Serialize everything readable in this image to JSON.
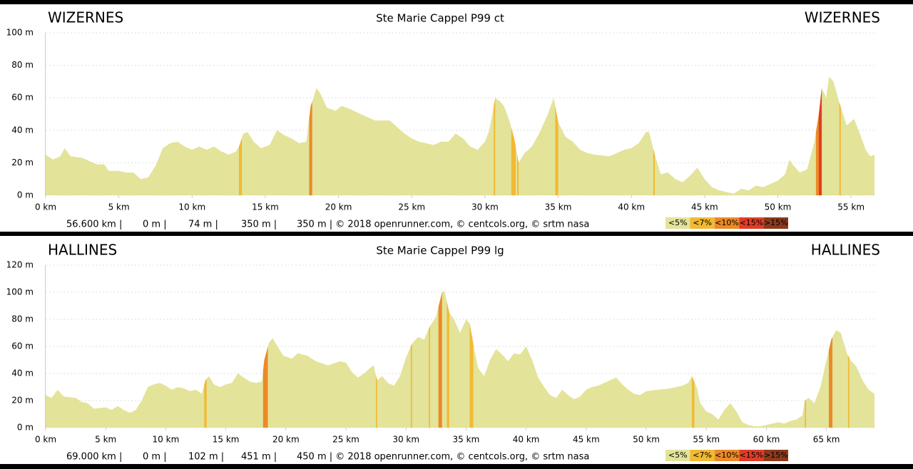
{
  "chart_data": [
    {
      "type": "area",
      "title": "Ste Marie Cappel P99 ct",
      "start_label": "WIZERNES",
      "end_label": "WIZERNES",
      "color": "#e3e39a",
      "x": [
        0,
        0.5,
        1,
        1.3,
        1.7,
        2.5,
        3,
        3.5,
        4,
        4.3,
        5,
        5.5,
        6,
        6.5,
        7,
        7.5,
        8,
        8.5,
        9,
        9.5,
        10,
        10.5,
        11,
        11.5,
        12,
        12.5,
        13,
        13.2,
        13.5,
        13.8,
        14.2,
        14.7,
        15.3,
        15.8,
        16.3,
        16.8,
        17.3,
        17.8,
        18.1,
        18.5,
        18.8,
        19.2,
        19.8,
        20.2,
        20.8,
        21.5,
        22,
        22.5,
        23.5,
        24,
        24.5,
        25,
        25.5,
        26.5,
        27,
        27.5,
        28,
        28.5,
        29,
        29.5,
        30,
        30.3,
        30.7,
        31,
        31.3,
        31.7,
        32,
        32.3,
        32.7,
        33.2,
        33.7,
        34.3,
        34.7,
        35,
        35.5,
        36,
        36.5,
        37,
        37.5,
        38.5,
        39,
        39.5,
        40,
        40.5,
        41,
        41.2,
        41.6,
        42,
        42.5,
        43,
        43.5,
        44,
        44.5,
        45,
        45.5,
        46,
        46.5,
        47,
        47.5,
        48,
        48.5,
        49,
        49.5,
        50,
        50.5,
        50.8,
        51,
        51.5,
        52,
        52.5,
        52.8,
        53,
        53.3,
        53.5,
        53.8,
        54.2,
        54.7,
        55.2,
        55.6,
        56,
        56.3,
        56.6
      ],
      "values": [
        25,
        22,
        24,
        29,
        24,
        23,
        21,
        19,
        19,
        15,
        15,
        14,
        14,
        10,
        11,
        18,
        29,
        32,
        33,
        30,
        28,
        30,
        28,
        30,
        27,
        25,
        27,
        30,
        38,
        39,
        33,
        29,
        31,
        40,
        37,
        35,
        32,
        33,
        55,
        66,
        62,
        54,
        52,
        55,
        53,
        50,
        48,
        46,
        46,
        42,
        38,
        35,
        33,
        31,
        33,
        33,
        38,
        35,
        30,
        28,
        33,
        40,
        60,
        58,
        55,
        45,
        35,
        20,
        26,
        30,
        38,
        50,
        60,
        45,
        36,
        33,
        28,
        26,
        25,
        24,
        26,
        28,
        29,
        32,
        39,
        39,
        25,
        13,
        14,
        10,
        8,
        12,
        17,
        10,
        5,
        3,
        2,
        1,
        4,
        3,
        6,
        5,
        7,
        9,
        13,
        22,
        19,
        14,
        16,
        33,
        50,
        66,
        60,
        73,
        70,
        57,
        43,
        47,
        38,
        28,
        24,
        25
      ],
      "xlim": [
        0,
        56.6
      ],
      "ylim": [
        0,
        100
      ],
      "xticks": [
        {
          "value": 0,
          "label": "0 km"
        },
        {
          "value": 5,
          "label": "5 km"
        },
        {
          "value": 10,
          "label": "10 km"
        },
        {
          "value": 15,
          "label": "15 km"
        },
        {
          "value": 20,
          "label": "20 km"
        },
        {
          "value": 25,
          "label": "25 km"
        },
        {
          "value": 30,
          "label": "30 km"
        },
        {
          "value": 35,
          "label": "35 km"
        },
        {
          "value": 40,
          "label": "40 km"
        },
        {
          "value": 45,
          "label": "45 km"
        },
        {
          "value": 50,
          "label": "50 km"
        },
        {
          "value": 55,
          "label": "55 km"
        }
      ],
      "yticks": [
        {
          "value": 0,
          "label": "0 m"
        },
        {
          "value": 20,
          "label": "20 m"
        },
        {
          "value": 40,
          "label": "40 m"
        },
        {
          "value": 60,
          "label": "60 m"
        },
        {
          "value": 80,
          "label": "80 m"
        },
        {
          "value": 100,
          "label": "100 m"
        }
      ],
      "steep": [
        {
          "from": 13.2,
          "to": 13.4,
          "grade": "<7%"
        },
        {
          "from": 18.0,
          "to": 18.2,
          "grade": "<10%"
        },
        {
          "from": 30.6,
          "to": 30.7,
          "grade": "<7%"
        },
        {
          "from": 31.8,
          "to": 32.1,
          "grade": "<7%"
        },
        {
          "from": 32.2,
          "to": 32.3,
          "grade": "<7%"
        },
        {
          "from": 34.8,
          "to": 35.0,
          "grade": "<7%"
        },
        {
          "from": 41.5,
          "to": 41.6,
          "grade": "<7%"
        },
        {
          "from": 52.6,
          "to": 52.8,
          "grade": "<10%"
        },
        {
          "from": 52.8,
          "to": 53.0,
          "grade": "<15%"
        },
        {
          "from": 54.2,
          "to": 54.3,
          "grade": "<7%"
        }
      ],
      "footer": [
        "56.600 km |",
        "0 m |",
        "74 m |",
        "350 m |",
        "350 m | © 2018 openrunner.com, © centcols.org, © srtm nasa"
      ],
      "legend": [
        {
          "label": "<5%",
          "color": "#e3e39a"
        },
        {
          "label": "<7%",
          "color": "#f2b933"
        },
        {
          "label": "<10%",
          "color": "#ec8a28"
        },
        {
          "label": "<15%",
          "color": "#e03c28"
        },
        {
          "label": ">15%",
          "color": "#8c3a1c"
        }
      ]
    },
    {
      "type": "area",
      "title": "Ste Marie Cappel P99 lg",
      "start_label": "HALLINES",
      "end_label": "HALLINES",
      "color": "#e3e39a",
      "x": [
        0,
        0.5,
        1,
        1.5,
        2.5,
        3,
        3.5,
        4,
        5,
        5.5,
        6,
        6.5,
        7,
        7.5,
        8,
        8.5,
        9,
        9.5,
        10,
        10.5,
        11,
        11.5,
        12,
        12.5,
        13,
        13.3,
        13.6,
        14,
        14.5,
        15,
        15.5,
        16,
        16.5,
        17,
        17.5,
        18,
        18.2,
        18.6,
        18.9,
        19.3,
        19.8,
        20.5,
        21,
        21.8,
        22.5,
        23.5,
        24.5,
        25,
        25.5,
        26,
        26.5,
        27,
        27.3,
        27.6,
        28,
        28.5,
        29,
        29.5,
        30,
        30.5,
        31,
        31.5,
        32,
        32.5,
        33,
        33.2,
        33.6,
        34,
        34.5,
        35,
        35.3,
        35.7,
        36,
        36.5,
        37,
        37.5,
        38,
        38.5,
        39,
        39.5,
        40,
        40.5,
        41,
        41.5,
        42,
        42.5,
        43,
        43.5,
        44,
        44.5,
        45,
        45.5,
        46,
        46.5,
        47,
        47.5,
        48,
        48.5,
        49,
        49.5,
        50,
        51,
        52,
        53,
        53.5,
        53.8,
        54.2,
        54.5,
        55,
        55.5,
        56,
        56.5,
        57,
        57.5,
        58,
        58.5,
        59,
        59.5,
        60,
        60.5,
        61,
        61.5,
        62,
        62.5,
        63,
        63.2,
        63.5,
        64,
        64.5,
        65,
        65.4,
        65.8,
        66.2,
        66.7,
        67,
        67.5,
        68,
        68.5,
        69
      ],
      "values": [
        24,
        22,
        28,
        23,
        22,
        19,
        18,
        14,
        15,
        13,
        16,
        13,
        11,
        13,
        20,
        30,
        32,
        33,
        31,
        28,
        30,
        29,
        27,
        28,
        25,
        35,
        38,
        32,
        30,
        32,
        33,
        40,
        37,
        34,
        33,
        34,
        50,
        63,
        66,
        60,
        53,
        51,
        55,
        53,
        49,
        46,
        49,
        48,
        41,
        37,
        40,
        44,
        46,
        35,
        38,
        33,
        31,
        38,
        52,
        62,
        67,
        65,
        75,
        82,
        100,
        101,
        85,
        80,
        70,
        80,
        77,
        57,
        44,
        38,
        50,
        58,
        54,
        49,
        55,
        54,
        60,
        50,
        37,
        30,
        24,
        22,
        28,
        24,
        21,
        23,
        28,
        30,
        31,
        33,
        35,
        37,
        32,
        28,
        25,
        24,
        27,
        28,
        29,
        31,
        33,
        38,
        30,
        18,
        12,
        10,
        6,
        13,
        18,
        12,
        4,
        2,
        1,
        1,
        2,
        3,
        4,
        3,
        5,
        6,
        9,
        20,
        22,
        18,
        30,
        50,
        65,
        72,
        70,
        55,
        50,
        45,
        35,
        28,
        25
      ],
      "xlim": [
        0,
        69
      ],
      "ylim": [
        0,
        120
      ],
      "xticks": [
        {
          "value": 0,
          "label": "0 km"
        },
        {
          "value": 5,
          "label": "5 km"
        },
        {
          "value": 10,
          "label": "10 km"
        },
        {
          "value": 15,
          "label": "15 km"
        },
        {
          "value": 20,
          "label": "20 km"
        },
        {
          "value": 25,
          "label": "25 km"
        },
        {
          "value": 30,
          "label": "30 km"
        },
        {
          "value": 35,
          "label": "35 km"
        },
        {
          "value": 40,
          "label": "40 km"
        },
        {
          "value": 45,
          "label": "45 km"
        },
        {
          "value": 50,
          "label": "50 km"
        },
        {
          "value": 55,
          "label": "55 km"
        },
        {
          "value": 60,
          "label": "60 km"
        },
        {
          "value": 65,
          "label": "65 km"
        }
      ],
      "yticks": [
        {
          "value": 0,
          "label": "0 m"
        },
        {
          "value": 20,
          "label": "20 m"
        },
        {
          "value": 40,
          "label": "40 m"
        },
        {
          "value": 60,
          "label": "60 m"
        },
        {
          "value": 80,
          "label": "80 m"
        },
        {
          "value": 100,
          "label": "100 m"
        },
        {
          "value": 120,
          "label": "120 m"
        }
      ],
      "steep": [
        {
          "from": 13.2,
          "to": 13.4,
          "grade": "<7%"
        },
        {
          "from": 18.1,
          "to": 18.5,
          "grade": "<10%"
        },
        {
          "from": 27.5,
          "to": 27.6,
          "grade": "<7%"
        },
        {
          "from": 30.4,
          "to": 30.5,
          "grade": "<7%"
        },
        {
          "from": 31.9,
          "to": 32.0,
          "grade": "<7%"
        },
        {
          "from": 32.7,
          "to": 33.0,
          "grade": "<10%"
        },
        {
          "from": 33.4,
          "to": 33.6,
          "grade": "<7%"
        },
        {
          "from": 35.3,
          "to": 35.6,
          "grade": "<7%"
        },
        {
          "from": 53.8,
          "to": 54.0,
          "grade": "<7%"
        },
        {
          "from": 63.2,
          "to": 63.3,
          "grade": "<7%"
        },
        {
          "from": 65.2,
          "to": 65.5,
          "grade": "<10%"
        },
        {
          "from": 66.8,
          "to": 66.9,
          "grade": "<7%"
        }
      ],
      "footer": [
        "69.000 km |",
        "0 m |",
        "102 m |",
        "451 m |",
        "450 m | © 2018 openrunner.com, © centcols.org, © srtm nasa"
      ],
      "legend": [
        {
          "label": "<5%",
          "color": "#e3e39a"
        },
        {
          "label": "<7%",
          "color": "#f2b933"
        },
        {
          "label": "<10%",
          "color": "#ec8a28"
        },
        {
          "label": "<15%",
          "color": "#e03c28"
        },
        {
          "label": ">15%",
          "color": "#8c3a1c"
        }
      ]
    }
  ]
}
